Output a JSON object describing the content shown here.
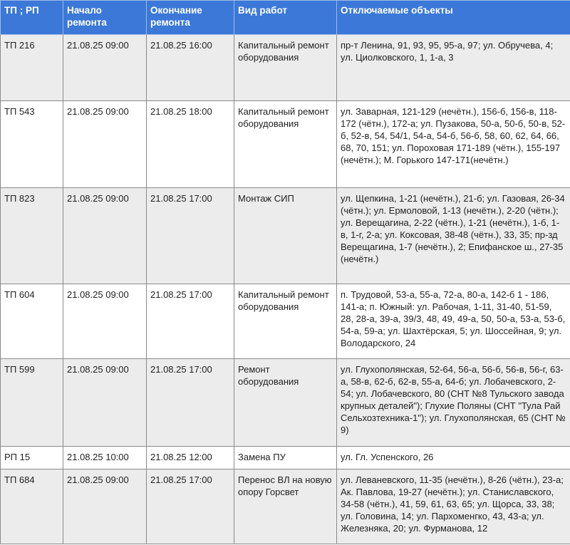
{
  "headers": [
    "ТП ; РП",
    "Начало ремонта",
    "Окончание ремонта",
    "Вид работ",
    "Отключаемые объекты"
  ],
  "colors": {
    "header_bg": "#3b78d8",
    "header_text": "#ffffff",
    "row_alt": "#ececec"
  },
  "rows": [
    {
      "tp": "ТП 216",
      "start": "21.08.25 09:00",
      "end": "21.08.25 16:00",
      "work": "Капитальный ремонт оборудования",
      "objects": "пр-т Ленина, 91, 93, 95, 95-а, 97; ул. Обручева, 4; ул. Циолковского, 1, 1-а, 3"
    },
    {
      "tp": "ТП 543",
      "start": "21.08.25 09:00",
      "end": "21.08.25 18:00",
      "work": "Капитальный ремонт оборудования",
      "objects": "ул. Заварная, 121-129 (нечётн.), 156-б, 156-в, 118-172 (чётн.), 172-а; ул. Пузакова, 50-а, 50-б, 50-в, 52-б, 52-в, 54, 54/1, 54-а, 54-б, 56-б, 58, 60, 62, 64, 66, 68, 70, 151; ул. Пороховая 171-189 (чётн.), 155-197 (нечётн.); М. Горького 147-171(нечётн.)"
    },
    {
      "tp": "ТП 823",
      "start": "21.08.25 09:00",
      "end": "21.08.25 17:00",
      "work": "Монтаж СИП",
      "objects": "ул. Щепкина, 1-21 (нечётн.), 21-б; ул. Газовая, 26-34 (чётн.); ул. Ермоловой, 1-13 (нечётн.), 2-20 (чётн.); ул. Верещагина, 2-22 (чётн.), 1-21 (нечётн.), 1-б, 1-в, 1-г, 2-а; ул. Коксовая, 38-48 (чётн.), 33, 35; пр-зд Верещагина, 1-7 (нечётн.), 2; Епифанское ш., 27-35 (нечётн.)"
    },
    {
      "tp": "ТП 604",
      "start": "21.08.25 09:00",
      "end": "21.08.25 17:00",
      "work": "Капитальный ремонт оборудования",
      "objects": "п. Трудовой, 53-а, 55-а, 72-а,  80-а, 142-б  1 - 186, 141-а; п. Южный: ул. Рабочая, 1-11, 31-40, 51-59, 28, 28-а, 39-а, 39/3, 48, 49, 49-а, 50, 50-а, 53-а, 53-б, 54-а, 59-а; ул. Шахтёрская, 5; ул. Шоссейная, 9; ул. Володарского, 24"
    },
    {
      "tp": "ТП 599",
      "start": "21.08.25 09:00",
      "end": "21.08.25 17:00",
      "work": "Ремонт оборудования",
      "objects": "ул. Глухополянская, 52-64, 56-а, 56-б, 56-в, 56-г, 63-а, 58-в, 62-б, 62-в, 55-а, 64-б; ул. Лобачевского, 2-54; ул. Лобачевского, 80 (СНТ №8 Тульского завода крупных деталей\"); Глухие Поляны (СНТ \"Тула Рай Сельхозтехника-1\"); ул. Глухополянская, 65 (СНТ № 9)"
    },
    {
      "tp": "РП 15",
      "start": "21.08.25 10:00",
      "end": "21.08.25 12:00",
      "work": "Замена ПУ",
      "objects": "ул. Гл. Успенского, 26"
    },
    {
      "tp": "ТП 684",
      "start": "21.08.25 09:00",
      "end": "21.08.25 17:00",
      "work": "Перенос ВЛ на новую опору Горсвет",
      "objects": "ул. Леваневского, 11-35 (нечётн.), 8-26 (чётн.), 23-а; Ак. Павлова, 19-27 (нечётн.); ул. Станиславского, 34-58 (чётн.), 41, 59, 61, 63, 65; ул. Щорса, 33, 38; ул. Головина, 14; ул. Пархоменгко, 43, 43-а; ул. Железняка, 20; ул. Фурманова, 12"
    }
  ]
}
